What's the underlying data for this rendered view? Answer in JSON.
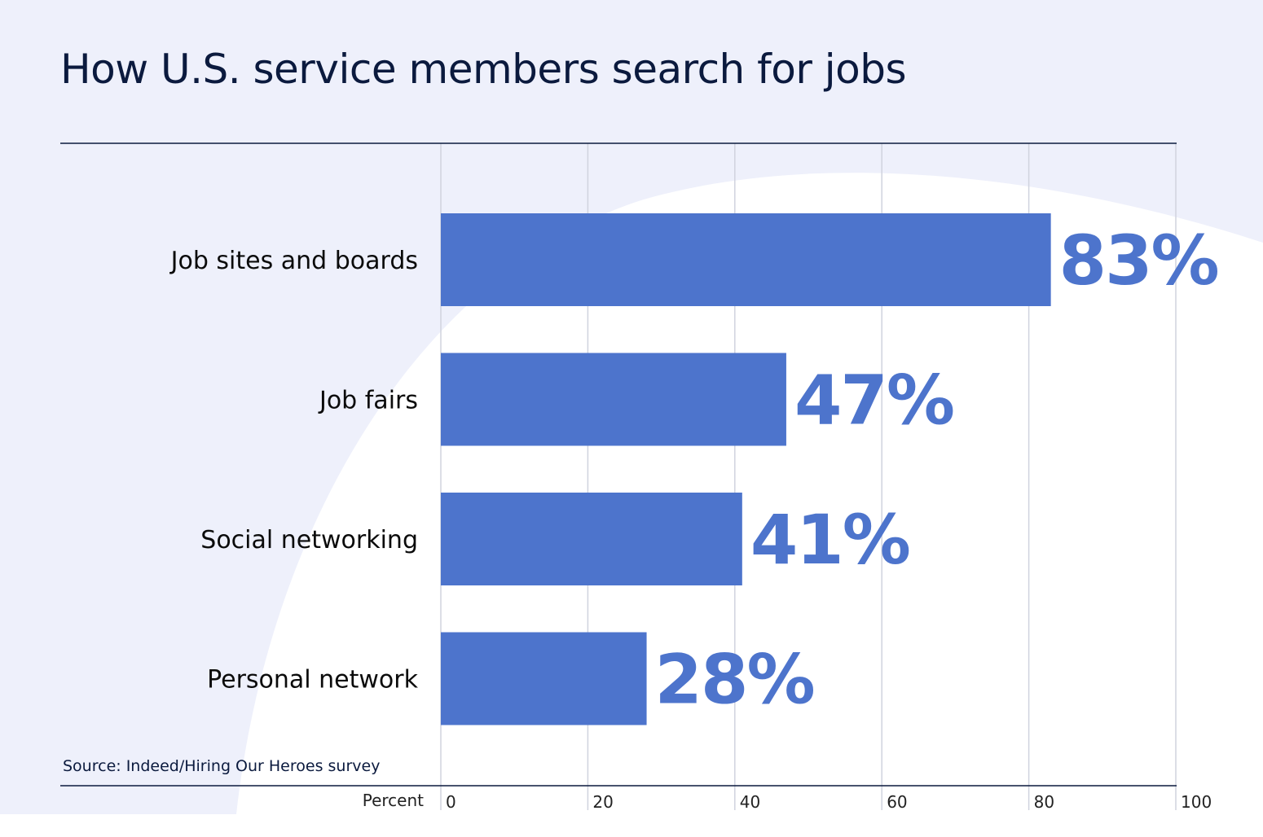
{
  "colors": {
    "background_tint": "#eef0fb",
    "bar": "#4d74cc",
    "value_label": "#4d74cc",
    "text": "#0b1a3e",
    "gridline": "#d0d3de",
    "rule": "#0b1a3e"
  },
  "chart_data": {
    "type": "bar",
    "orientation": "horizontal",
    "title": "How U.S. service members search for jobs",
    "source": "Source: Indeed/Hiring Our Heroes survey",
    "xlabel": "Percent",
    "ylabel": "",
    "categories": [
      "Job sites and boards",
      "Job fairs",
      "Social networking",
      "Personal network"
    ],
    "values": [
      83,
      47,
      41,
      28
    ],
    "value_labels": [
      "83%",
      "47%",
      "41%",
      "28%"
    ],
    "xlim": [
      0,
      100
    ],
    "xticks": [
      0,
      20,
      40,
      60,
      80,
      100
    ],
    "xtick_labels": [
      "0",
      "20",
      "40",
      "60",
      "80",
      "100"
    ],
    "grid": true,
    "legend": "none"
  }
}
